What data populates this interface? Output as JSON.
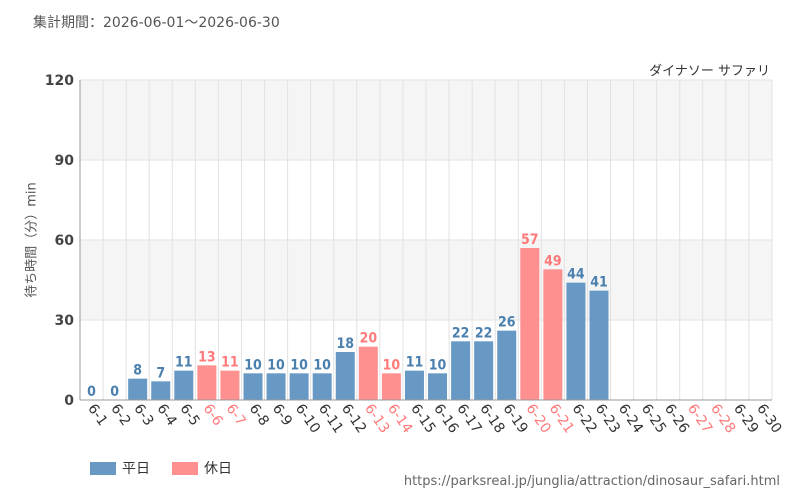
{
  "header": {
    "period_label": "集計期間：2026-06-01～2026-06-30",
    "attraction_name": "ダイナソー サファリ"
  },
  "colors": {
    "weekday": "#6899c4",
    "holiday": "#ff9090",
    "grid": "#e2e2e2",
    "band": "#f5f5f5",
    "weekday_text": "#4a7fae",
    "holiday_text": "#ff7a7a"
  },
  "legend": {
    "weekday_label": "平日",
    "holiday_label": "休日"
  },
  "source_url": "https://parksreal.jp/junglia/attraction/dinosaur_safari.html",
  "chart_data": {
    "type": "bar",
    "ylabel": "待ち時間（分）min",
    "ylim": [
      0,
      120
    ],
    "yticks": [
      0,
      30,
      60,
      90,
      120
    ],
    "grid": true,
    "legend_position": "bottom-left",
    "categories": [
      "6-1",
      "6-2",
      "6-3",
      "6-4",
      "6-5",
      "6-6",
      "6-7",
      "6-8",
      "6-9",
      "6-10",
      "6-11",
      "6-12",
      "6-13",
      "6-14",
      "6-15",
      "6-16",
      "6-17",
      "6-18",
      "6-19",
      "6-20",
      "6-21",
      "6-22",
      "6-23",
      "6-24",
      "6-25",
      "6-26",
      "6-27",
      "6-28",
      "6-29",
      "6-30"
    ],
    "values": [
      0,
      0,
      8,
      7,
      11,
      13,
      11,
      10,
      10,
      10,
      10,
      18,
      20,
      10,
      11,
      10,
      22,
      22,
      26,
      57,
      49,
      44,
      41,
      null,
      null,
      null,
      null,
      null,
      null,
      null
    ],
    "day_type": [
      "weekday",
      "weekday",
      "weekday",
      "weekday",
      "weekday",
      "holiday",
      "holiday",
      "weekday",
      "weekday",
      "weekday",
      "weekday",
      "weekday",
      "holiday",
      "holiday",
      "weekday",
      "weekday",
      "weekday",
      "weekday",
      "weekday",
      "holiday",
      "holiday",
      "weekday",
      "weekday",
      "weekday",
      "weekday",
      "weekday",
      "holiday",
      "holiday",
      "weekday",
      "weekday"
    ],
    "series": [
      {
        "name": "平日"
      },
      {
        "name": "休日"
      }
    ]
  }
}
